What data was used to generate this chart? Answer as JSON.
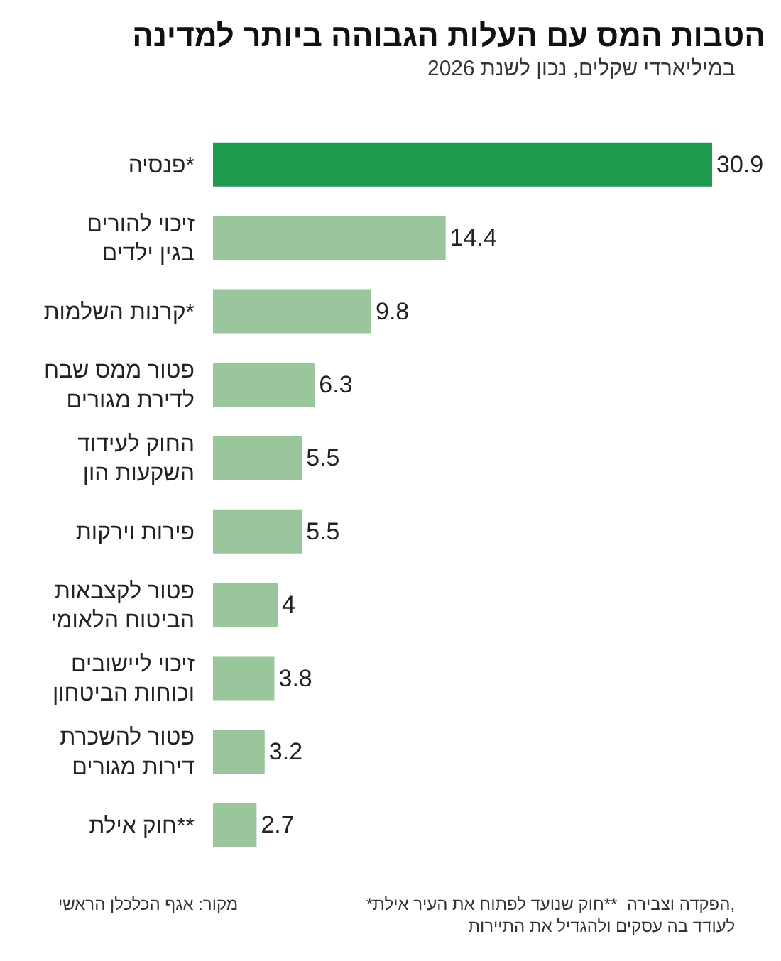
{
  "chart_data": {
    "type": "bar",
    "orientation": "horizontal",
    "title": "הטבות המס עם העלות הגבוהה ביותר למדינה",
    "subtitle": "במיליארדי שקלים, נכון לשנת 2026",
    "categories": [
      "פנסיה*",
      "זיכוי להורים\nבגין ילדים",
      "קרנות השלמות*",
      "פטור ממס שבח\nלדירת מגורים",
      "החוק לעידוד\nהשקעות הון",
      "פירות וירקות",
      "פטור לקצבאות\nהביטוח הלאומי",
      "זיכוי ליישובים\nוכוחות הביטחון",
      "פטור להשכרת\nדירות מגורים",
      "חוק אילת**"
    ],
    "values": [
      30.9,
      14.4,
      9.8,
      6.3,
      5.5,
      5.5,
      4,
      3.8,
      3.2,
      2.7
    ],
    "colors": [
      "#1e9a4f",
      "#9ac69b",
      "#9ac69b",
      "#9ac69b",
      "#9ac69b",
      "#9ac69b",
      "#9ac69b",
      "#9ac69b",
      "#9ac69b",
      "#9ac69b"
    ],
    "data_labels": true,
    "annotations": [
      "*הפקדה וצבירה  **חוק שנועד לפתוח את העיר אילת,\nלעודד בה עסקים ולהגדיל את התיירות",
      "מקור: אגף הכלכלן הראשי"
    ]
  }
}
